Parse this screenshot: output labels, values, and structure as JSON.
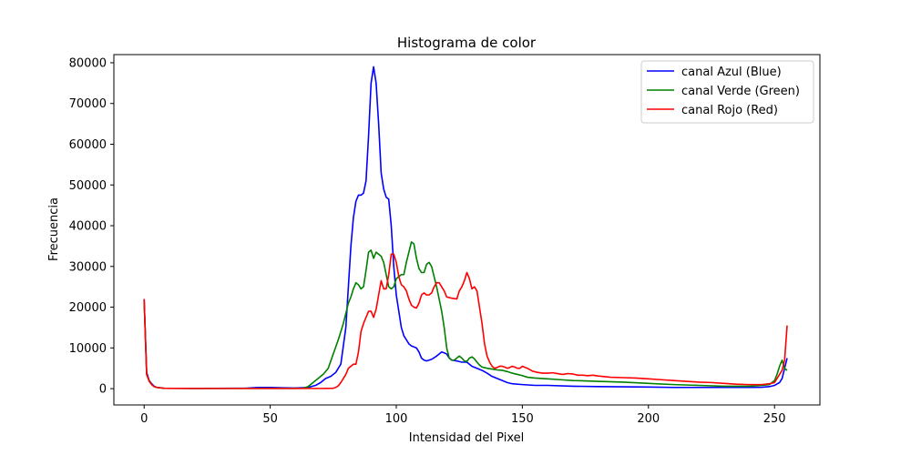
{
  "chart_data": {
    "type": "line",
    "title": "Histograma de color",
    "xlabel": "Intensidad del Pixel",
    "ylabel": "Frecuencia",
    "xlim": [
      -12,
      268
    ],
    "ylim": [
      -4000,
      82000
    ],
    "xticks": [
      0,
      50,
      100,
      150,
      200,
      250
    ],
    "yticks": [
      0,
      10000,
      20000,
      30000,
      40000,
      50000,
      60000,
      70000,
      80000
    ],
    "legend_position": "top-right",
    "grid": false,
    "series": [
      {
        "name": "canal Azul (Blue)",
        "color": "#0000ff",
        "points": [
          [
            0,
            22000
          ],
          [
            1,
            4000
          ],
          [
            2,
            2000
          ],
          [
            3,
            1200
          ],
          [
            4,
            600
          ],
          [
            5,
            300
          ],
          [
            8,
            100
          ],
          [
            20,
            50
          ],
          [
            40,
            100
          ],
          [
            45,
            300
          ],
          [
            50,
            300
          ],
          [
            55,
            200
          ],
          [
            60,
            150
          ],
          [
            65,
            300
          ],
          [
            68,
            800
          ],
          [
            70,
            1500
          ],
          [
            72,
            2500
          ],
          [
            74,
            3000
          ],
          [
            76,
            4000
          ],
          [
            78,
            6000
          ],
          [
            80,
            15000
          ],
          [
            82,
            35000
          ],
          [
            83,
            42000
          ],
          [
            84,
            46000
          ],
          [
            85,
            47500
          ],
          [
            86,
            47500
          ],
          [
            87,
            48000
          ],
          [
            88,
            51000
          ],
          [
            89,
            62000
          ],
          [
            90,
            75000
          ],
          [
            91,
            79000
          ],
          [
            92,
            75000
          ],
          [
            93,
            65000
          ],
          [
            94,
            53000
          ],
          [
            95,
            49000
          ],
          [
            96,
            47000
          ],
          [
            97,
            46500
          ],
          [
            98,
            40000
          ],
          [
            99,
            30000
          ],
          [
            100,
            23000
          ],
          [
            101,
            19000
          ],
          [
            102,
            15000
          ],
          [
            103,
            13000
          ],
          [
            104,
            12000
          ],
          [
            105,
            11000
          ],
          [
            106,
            10500
          ],
          [
            108,
            10000
          ],
          [
            109,
            9000
          ],
          [
            110,
            7500
          ],
          [
            111,
            7000
          ],
          [
            112,
            6800
          ],
          [
            114,
            7200
          ],
          [
            116,
            8000
          ],
          [
            118,
            9000
          ],
          [
            119,
            8800
          ],
          [
            120,
            8500
          ],
          [
            121,
            7500
          ],
          [
            122,
            7000
          ],
          [
            124,
            6800
          ],
          [
            126,
            6500
          ],
          [
            128,
            6500
          ],
          [
            130,
            5500
          ],
          [
            132,
            5000
          ],
          [
            134,
            4500
          ],
          [
            136,
            3800
          ],
          [
            138,
            3000
          ],
          [
            140,
            2500
          ],
          [
            142,
            2000
          ],
          [
            144,
            1500
          ],
          [
            146,
            1200
          ],
          [
            150,
            1000
          ],
          [
            155,
            800
          ],
          [
            160,
            800
          ],
          [
            170,
            600
          ],
          [
            180,
            500
          ],
          [
            190,
            450
          ],
          [
            200,
            400
          ],
          [
            210,
            300
          ],
          [
            220,
            300
          ],
          [
            230,
            300
          ],
          [
            240,
            300
          ],
          [
            245,
            350
          ],
          [
            248,
            500
          ],
          [
            250,
            800
          ],
          [
            252,
            1500
          ],
          [
            253,
            2500
          ],
          [
            254,
            5000
          ],
          [
            255,
            7500
          ]
        ]
      },
      {
        "name": "canal Verde (Green)",
        "color": "#008000",
        "points": [
          [
            0,
            21500
          ],
          [
            1,
            3500
          ],
          [
            2,
            2000
          ],
          [
            3,
            1000
          ],
          [
            4,
            500
          ],
          [
            5,
            300
          ],
          [
            8,
            100
          ],
          [
            20,
            50
          ],
          [
            40,
            50
          ],
          [
            50,
            50
          ],
          [
            55,
            50
          ],
          [
            60,
            50
          ],
          [
            63,
            100
          ],
          [
            65,
            500
          ],
          [
            67,
            1500
          ],
          [
            69,
            2500
          ],
          [
            71,
            3500
          ],
          [
            73,
            5000
          ],
          [
            75,
            8500
          ],
          [
            77,
            12000
          ],
          [
            79,
            16000
          ],
          [
            81,
            21000
          ],
          [
            82,
            22500
          ],
          [
            83,
            24500
          ],
          [
            84,
            26000
          ],
          [
            85,
            25500
          ],
          [
            86,
            24500
          ],
          [
            87,
            25000
          ],
          [
            88,
            29000
          ],
          [
            89,
            33500
          ],
          [
            90,
            34000
          ],
          [
            91,
            32000
          ],
          [
            92,
            33500
          ],
          [
            93,
            33000
          ],
          [
            94,
            32500
          ],
          [
            95,
            31000
          ],
          [
            96,
            28000
          ],
          [
            97,
            25000
          ],
          [
            98,
            24500
          ],
          [
            99,
            25000
          ],
          [
            100,
            27000
          ],
          [
            101,
            27500
          ],
          [
            102,
            28000
          ],
          [
            103,
            28000
          ],
          [
            104,
            31000
          ],
          [
            105,
            33500
          ],
          [
            106,
            36000
          ],
          [
            107,
            35500
          ],
          [
            108,
            32000
          ],
          [
            109,
            29500
          ],
          [
            110,
            28500
          ],
          [
            111,
            28500
          ],
          [
            112,
            30500
          ],
          [
            113,
            31000
          ],
          [
            114,
            30000
          ],
          [
            115,
            27500
          ],
          [
            116,
            25000
          ],
          [
            117,
            22000
          ],
          [
            118,
            19000
          ],
          [
            119,
            15000
          ],
          [
            120,
            10000
          ],
          [
            121,
            7500
          ],
          [
            122,
            7000
          ],
          [
            123,
            7000
          ],
          [
            124,
            7500
          ],
          [
            125,
            8000
          ],
          [
            126,
            7500
          ],
          [
            127,
            6800
          ],
          [
            128,
            6700
          ],
          [
            129,
            7500
          ],
          [
            130,
            7800
          ],
          [
            131,
            7300
          ],
          [
            132,
            6500
          ],
          [
            133,
            5800
          ],
          [
            134,
            5300
          ],
          [
            136,
            5000
          ],
          [
            138,
            4800
          ],
          [
            140,
            4600
          ],
          [
            142,
            4500
          ],
          [
            144,
            4200
          ],
          [
            146,
            3800
          ],
          [
            148,
            3500
          ],
          [
            150,
            3200
          ],
          [
            152,
            2800
          ],
          [
            155,
            2600
          ],
          [
            160,
            2400
          ],
          [
            165,
            2200
          ],
          [
            170,
            2000
          ],
          [
            180,
            1800
          ],
          [
            190,
            1600
          ],
          [
            200,
            1300
          ],
          [
            210,
            1000
          ],
          [
            220,
            800
          ],
          [
            230,
            600
          ],
          [
            240,
            600
          ],
          [
            245,
            800
          ],
          [
            248,
            1000
          ],
          [
            250,
            2000
          ],
          [
            251,
            3500
          ],
          [
            252,
            5500
          ],
          [
            253,
            7000
          ],
          [
            254,
            5000
          ],
          [
            255,
            4500
          ]
        ]
      },
      {
        "name": "canal Rojo (Red)",
        "color": "#ff0000",
        "points": [
          [
            0,
            22000
          ],
          [
            1,
            3500
          ],
          [
            2,
            1800
          ],
          [
            3,
            1000
          ],
          [
            4,
            500
          ],
          [
            5,
            300
          ],
          [
            8,
            100
          ],
          [
            20,
            50
          ],
          [
            40,
            50
          ],
          [
            50,
            50
          ],
          [
            60,
            50
          ],
          [
            70,
            50
          ],
          [
            75,
            100
          ],
          [
            76,
            300
          ],
          [
            77,
            700
          ],
          [
            78,
            1500
          ],
          [
            79,
            2500
          ],
          [
            80,
            3500
          ],
          [
            81,
            5000
          ],
          [
            82,
            5500
          ],
          [
            83,
            6000
          ],
          [
            84,
            6000
          ],
          [
            85,
            9000
          ],
          [
            86,
            14000
          ],
          [
            87,
            16000
          ],
          [
            88,
            17500
          ],
          [
            89,
            19000
          ],
          [
            90,
            19000
          ],
          [
            91,
            17500
          ],
          [
            92,
            19500
          ],
          [
            93,
            23000
          ],
          [
            94,
            26500
          ],
          [
            95,
            24500
          ],
          [
            96,
            24500
          ],
          [
            97,
            28000
          ],
          [
            98,
            33000
          ],
          [
            99,
            33000
          ],
          [
            100,
            31000
          ],
          [
            101,
            27500
          ],
          [
            102,
            25500
          ],
          [
            103,
            25000
          ],
          [
            104,
            24000
          ],
          [
            105,
            22000
          ],
          [
            106,
            20500
          ],
          [
            107,
            20000
          ],
          [
            108,
            19800
          ],
          [
            109,
            21000
          ],
          [
            110,
            23000
          ],
          [
            111,
            23500
          ],
          [
            112,
            23000
          ],
          [
            113,
            23000
          ],
          [
            114,
            23500
          ],
          [
            115,
            25000
          ],
          [
            116,
            26000
          ],
          [
            117,
            26000
          ],
          [
            118,
            25000
          ],
          [
            119,
            24000
          ],
          [
            120,
            22500
          ],
          [
            122,
            22200
          ],
          [
            124,
            22000
          ],
          [
            125,
            24000
          ],
          [
            126,
            25000
          ],
          [
            127,
            26500
          ],
          [
            128,
            28500
          ],
          [
            129,
            27000
          ],
          [
            130,
            24500
          ],
          [
            131,
            25000
          ],
          [
            132,
            24000
          ],
          [
            133,
            20000
          ],
          [
            134,
            16000
          ],
          [
            135,
            11000
          ],
          [
            136,
            8000
          ],
          [
            137,
            6500
          ],
          [
            138,
            5500
          ],
          [
            139,
            5000
          ],
          [
            140,
            5200
          ],
          [
            141,
            5500
          ],
          [
            142,
            5500
          ],
          [
            143,
            5300
          ],
          [
            144,
            5000
          ],
          [
            145,
            5200
          ],
          [
            146,
            5500
          ],
          [
            147,
            5300
          ],
          [
            148,
            5000
          ],
          [
            149,
            5000
          ],
          [
            150,
            5500
          ],
          [
            152,
            5000
          ],
          [
            154,
            4300
          ],
          [
            156,
            4000
          ],
          [
            158,
            3800
          ],
          [
            160,
            3800
          ],
          [
            162,
            3900
          ],
          [
            164,
            3700
          ],
          [
            166,
            3500
          ],
          [
            168,
            3700
          ],
          [
            170,
            3600
          ],
          [
            172,
            3300
          ],
          [
            174,
            3300
          ],
          [
            176,
            3200
          ],
          [
            178,
            3300
          ],
          [
            180,
            3100
          ],
          [
            182,
            3000
          ],
          [
            185,
            2800
          ],
          [
            190,
            2700
          ],
          [
            195,
            2600
          ],
          [
            200,
            2400
          ],
          [
            205,
            2200
          ],
          [
            210,
            2000
          ],
          [
            215,
            1800
          ],
          [
            220,
            1600
          ],
          [
            225,
            1500
          ],
          [
            230,
            1300
          ],
          [
            235,
            1100
          ],
          [
            240,
            1000
          ],
          [
            245,
            1000
          ],
          [
            248,
            1200
          ],
          [
            250,
            1500
          ],
          [
            251,
            2500
          ],
          [
            252,
            3500
          ],
          [
            253,
            4500
          ],
          [
            254,
            7000
          ],
          [
            255,
            15500
          ]
        ]
      }
    ]
  }
}
